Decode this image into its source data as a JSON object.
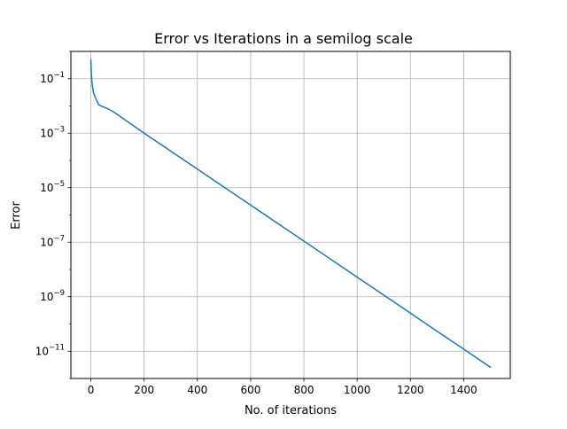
{
  "chart_data": {
    "type": "line",
    "title": "Error vs Iterations in a semilog scale",
    "xlabel": "No. of iterations",
    "ylabel": "Error",
    "xlim": [
      -75,
      1575
    ],
    "ylim": [
      1e-12,
      1.0
    ],
    "yscale": "log",
    "grid": true,
    "x_ticks": [
      0,
      200,
      400,
      600,
      800,
      1000,
      1200,
      1400
    ],
    "y_ticks": [
      {
        "base": "10",
        "exp": "−1",
        "value": 0.1
      },
      {
        "base": "10",
        "exp": "−3",
        "value": 0.001
      },
      {
        "base": "10",
        "exp": "−5",
        "value": 1e-05
      },
      {
        "base": "10",
        "exp": "−7",
        "value": 1e-07
      },
      {
        "base": "10",
        "exp": "−9",
        "value": 1e-09
      },
      {
        "base": "10",
        "exp": "−11",
        "value": 1e-11
      }
    ],
    "series": [
      {
        "color": "#1f77b4",
        "x": [
          0,
          2,
          5,
          10,
          20,
          30,
          40,
          60,
          80,
          100,
          150,
          200,
          300,
          400,
          500,
          600,
          700,
          800,
          900,
          1000,
          1100,
          1200,
          1300,
          1400,
          1500
        ],
        "y": [
          0.5,
          0.15,
          0.06,
          0.03,
          0.017,
          0.011,
          0.0098,
          0.0082,
          0.0065,
          0.0048,
          0.0022,
          0.001,
          0.00022,
          4.8e-05,
          1.05e-05,
          2.3e-06,
          5e-07,
          1.1e-07,
          2.4e-08,
          5.2e-09,
          1.14e-09,
          2.5e-10,
          5.4e-11,
          1.2e-11,
          2.6e-12
        ]
      }
    ]
  }
}
